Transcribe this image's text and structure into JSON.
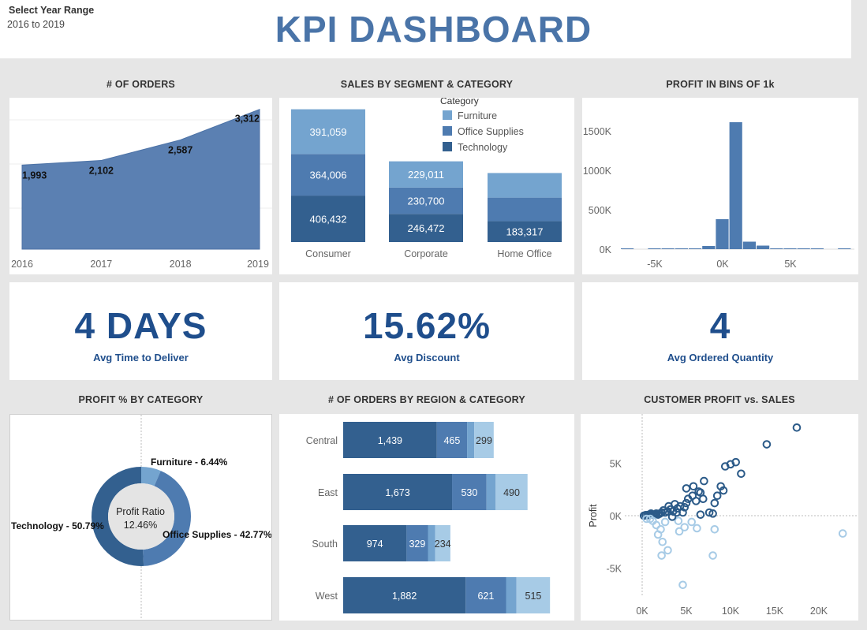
{
  "filter": {
    "label": "Select Year Range",
    "value": "2016 to 2019"
  },
  "dashboard_title": "KPI DASHBOARD",
  "colors": {
    "dark": "#33608f",
    "mid": "#4e7bb0",
    "light": "#74a4cf",
    "lighter": "#a7cbe6",
    "kpi": "#1f4e8c",
    "area": "#5b80b2"
  },
  "kpis": [
    {
      "value": "4 DAYS",
      "label": "Avg Time to Deliver"
    },
    {
      "value": "15.62%",
      "label": "Avg Discount"
    },
    {
      "value": "4",
      "label": "Avg Ordered Quantity"
    }
  ],
  "chart_data": [
    {
      "id": "orders",
      "type": "area",
      "title": "# OF ORDERS",
      "x": [
        "2016",
        "2017",
        "2018",
        "2019"
      ],
      "values": [
        1993,
        2102,
        2587,
        3312
      ],
      "value_labels": [
        "1,993",
        "2,102",
        "2,587",
        "3,312"
      ],
      "ylim": [
        0,
        3400
      ]
    },
    {
      "id": "segment",
      "type": "bar",
      "title": "SALES BY SEGMENT & CATEGORY",
      "stacked": true,
      "categories": [
        "Consumer",
        "Corporate",
        "Home Office"
      ],
      "legend_title": "Category",
      "legend_position": "top-right",
      "series": [
        {
          "name": "Technology",
          "values": [
            406432,
            246472,
            183317
          ],
          "labels": [
            "406,432",
            "246,472",
            "183,317"
          ]
        },
        {
          "name": "Office Supplies",
          "values": [
            364006,
            230700,
            205516
          ],
          "labels": [
            "364,006",
            "230,700",
            ""
          ]
        },
        {
          "name": "Furniture",
          "values": [
            391059,
            229011,
            215000
          ],
          "labels": [
            "391,059",
            "229,011",
            ""
          ]
        }
      ]
    },
    {
      "id": "profit_bins",
      "type": "bar",
      "title": "PROFIT IN BINS OF 1k",
      "x_ticks": [
        "-5K",
        "0K",
        "5K"
      ],
      "y_ticks": [
        "0K",
        "500K",
        "1000K",
        "1500K"
      ],
      "ylim": [
        0,
        1700000
      ],
      "bins": [
        -7,
        -5,
        -4,
        -3,
        -2,
        -1,
        0,
        1,
        2,
        3,
        4,
        5,
        6,
        7,
        9
      ],
      "values": [
        1000,
        1000,
        1000,
        2000,
        8000,
        40000,
        380000,
        1610000,
        95000,
        45000,
        8000,
        5000,
        4000,
        3000,
        3000
      ]
    },
    {
      "id": "profit_category",
      "type": "pie",
      "title": "PROFIT % BY CATEGORY",
      "center_label": "Profit Ratio",
      "center_value": "12.46%",
      "slices": [
        {
          "name": "Furniture",
          "label": "Furniture - 6.44%",
          "value": 6.44
        },
        {
          "name": "Office Supplies",
          "label": "Office Supplies - 42.77%",
          "value": 42.77
        },
        {
          "name": "Technology",
          "label": "Technology - 50.79%",
          "value": 50.79
        }
      ]
    },
    {
      "id": "region",
      "type": "bar",
      "orientation": "horizontal",
      "stacked": true,
      "title": "# OF ORDERS BY REGION & CATEGORY",
      "categories": [
        "Central",
        "East",
        "South",
        "West"
      ],
      "series": [
        {
          "name": "Office Supplies",
          "values": [
            1439,
            1673,
            974,
            1882
          ],
          "labels": [
            "1,439",
            "1,673",
            "974",
            "1,882"
          ]
        },
        {
          "name": "Technology",
          "values": [
            465,
            530,
            329,
            621
          ],
          "labels": [
            "465",
            "530",
            "329",
            "621"
          ]
        },
        {
          "name": "Technology-2",
          "values": [
            110,
            140,
            110,
            160
          ],
          "labels": [
            "",
            "",
            "",
            ""
          ]
        },
        {
          "name": "Furniture",
          "values": [
            299,
            490,
            234,
            515
          ],
          "labels": [
            "299",
            "490",
            "234",
            "515"
          ]
        }
      ]
    },
    {
      "id": "scatter",
      "type": "scatter",
      "title": "CUSTOMER PROFIT vs. SALES",
      "ylabel": "Profit",
      "x_ticks": [
        "0K",
        "5K",
        "10K",
        "15K",
        "20K"
      ],
      "y_ticks": [
        "5K",
        "0K",
        "-5K"
      ],
      "xlim": [
        -500,
        24000
      ],
      "ylim": [
        -7000,
        9000
      ],
      "points": [
        [
          17500,
          8400
        ],
        [
          14100,
          6800
        ],
        [
          11200,
          4000
        ],
        [
          10600,
          5100
        ],
        [
          10000,
          4900
        ],
        [
          9400,
          4700
        ],
        [
          8900,
          2800
        ],
        [
          9200,
          2400
        ],
        [
          8500,
          1900
        ],
        [
          8200,
          1200
        ],
        [
          8000,
          200
        ],
        [
          8200,
          -1300
        ],
        [
          8000,
          -3800
        ],
        [
          22700,
          -1700
        ],
        [
          6400,
          2300
        ],
        [
          6900,
          1600
        ],
        [
          6100,
          1400
        ],
        [
          5700,
          1900
        ],
        [
          5200,
          1600
        ],
        [
          5000,
          1200
        ],
        [
          4800,
          800
        ],
        [
          4300,
          900
        ],
        [
          4600,
          300
        ],
        [
          4000,
          700
        ],
        [
          3900,
          300
        ],
        [
          3500,
          400
        ],
        [
          3200,
          600
        ],
        [
          2900,
          400
        ],
        [
          2600,
          300
        ],
        [
          2400,
          500
        ],
        [
          2200,
          300
        ],
        [
          2000,
          200
        ],
        [
          1800,
          100
        ],
        [
          1600,
          200
        ],
        [
          1400,
          100
        ],
        [
          1200,
          100
        ],
        [
          1000,
          200
        ],
        [
          800,
          100
        ],
        [
          600,
          50
        ],
        [
          400,
          50
        ],
        [
          200,
          0
        ],
        [
          500,
          -300
        ],
        [
          5000,
          2600
        ],
        [
          5800,
          2800
        ],
        [
          7000,
          3300
        ],
        [
          6600,
          2200
        ],
        [
          3700,
          1100
        ],
        [
          3000,
          900
        ],
        [
          7600,
          300
        ],
        [
          6600,
          100
        ],
        [
          5600,
          -600
        ],
        [
          6200,
          -1200
        ],
        [
          4100,
          -500
        ],
        [
          2600,
          -600
        ],
        [
          2100,
          -1300
        ],
        [
          1800,
          -1800
        ],
        [
          2300,
          -2500
        ],
        [
          2900,
          -3300
        ],
        [
          2200,
          -3800
        ],
        [
          4600,
          -6600
        ],
        [
          1600,
          -900
        ],
        [
          1200,
          -500
        ],
        [
          900,
          -300
        ],
        [
          3400,
          -100
        ],
        [
          4800,
          -1100
        ],
        [
          4200,
          -1500
        ]
      ]
    }
  ]
}
